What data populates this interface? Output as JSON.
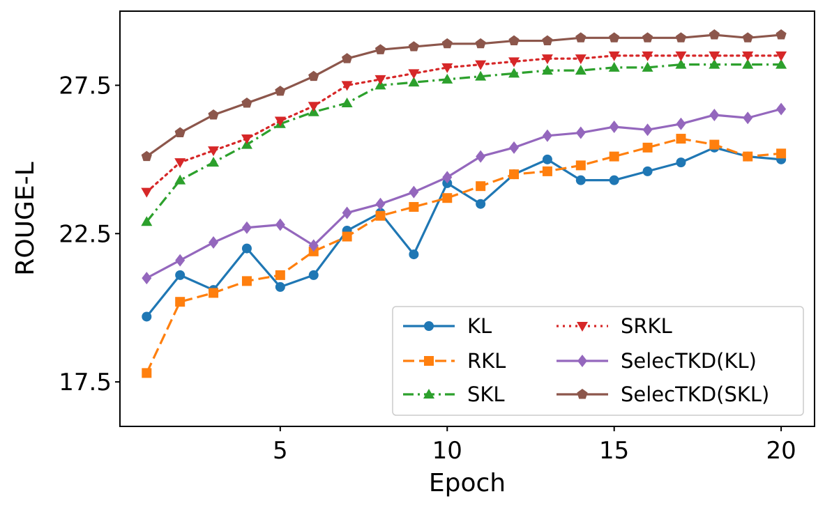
{
  "chart_data": {
    "type": "line",
    "title": "",
    "xlabel": "Epoch",
    "ylabel": "ROUGE-L",
    "xlim": [
      0.2,
      21
    ],
    "ylim": [
      16.0,
      30.0
    ],
    "xticks": [
      5,
      10,
      15,
      20
    ],
    "xtick_labels": [
      "5",
      "10",
      "15",
      "20"
    ],
    "yticks": [
      17.5,
      22.5,
      27.5
    ],
    "ytick_labels": [
      "17.5",
      "22.5",
      "27.5"
    ],
    "grid": false,
    "legend_position": "lower-right",
    "x": [
      1,
      2,
      3,
      4,
      5,
      6,
      7,
      8,
      9,
      10,
      11,
      12,
      13,
      14,
      15,
      16,
      17,
      18,
      19,
      20
    ],
    "series": [
      {
        "name": "KL",
        "color": "#1f77b4",
        "line_style": "solid",
        "marker": "circle",
        "values": [
          19.7,
          21.1,
          20.6,
          22.0,
          20.7,
          21.1,
          22.6,
          23.2,
          21.8,
          24.2,
          23.5,
          24.5,
          25.0,
          24.3,
          24.3,
          24.6,
          24.9,
          25.4,
          25.1,
          25.0
        ]
      },
      {
        "name": "RKL",
        "color": "#ff7f0e",
        "line_style": "dashed",
        "marker": "square",
        "values": [
          17.8,
          20.2,
          20.5,
          20.9,
          21.1,
          21.9,
          22.4,
          23.1,
          23.4,
          23.7,
          24.1,
          24.5,
          24.6,
          24.8,
          25.1,
          25.4,
          25.7,
          25.5,
          25.1,
          25.2
        ]
      },
      {
        "name": "SKL",
        "color": "#2ca02c",
        "line_style": "dashdot",
        "marker": "triangle-up",
        "values": [
          22.9,
          24.3,
          24.9,
          25.5,
          26.2,
          26.6,
          26.9,
          27.5,
          27.6,
          27.7,
          27.8,
          27.9,
          28.0,
          28.0,
          28.1,
          28.1,
          28.2,
          28.2,
          28.2,
          28.2
        ]
      },
      {
        "name": "SRKL",
        "color": "#d62728",
        "line_style": "dotted",
        "marker": "triangle-down",
        "values": [
          23.9,
          24.9,
          25.3,
          25.7,
          26.3,
          26.8,
          27.5,
          27.7,
          27.9,
          28.1,
          28.2,
          28.3,
          28.4,
          28.4,
          28.5,
          28.5,
          28.5,
          28.5,
          28.5,
          28.5
        ]
      },
      {
        "name": "SelecTKD(KL)",
        "color": "#9467bd",
        "line_style": "solid",
        "marker": "diamond",
        "values": [
          21.0,
          21.6,
          22.2,
          22.7,
          22.8,
          22.1,
          23.2,
          23.5,
          23.9,
          24.4,
          25.1,
          25.4,
          25.8,
          25.9,
          26.1,
          26.0,
          26.2,
          26.5,
          26.4,
          26.7
        ]
      },
      {
        "name": "SelecTKD(SKL)",
        "color": "#8c564b",
        "line_style": "solid",
        "marker": "pentagon",
        "values": [
          25.1,
          25.9,
          26.5,
          26.9,
          27.3,
          27.8,
          28.4,
          28.7,
          28.8,
          28.9,
          28.9,
          29.0,
          29.0,
          29.1,
          29.1,
          29.1,
          29.1,
          29.2,
          29.1,
          29.2
        ]
      }
    ]
  }
}
